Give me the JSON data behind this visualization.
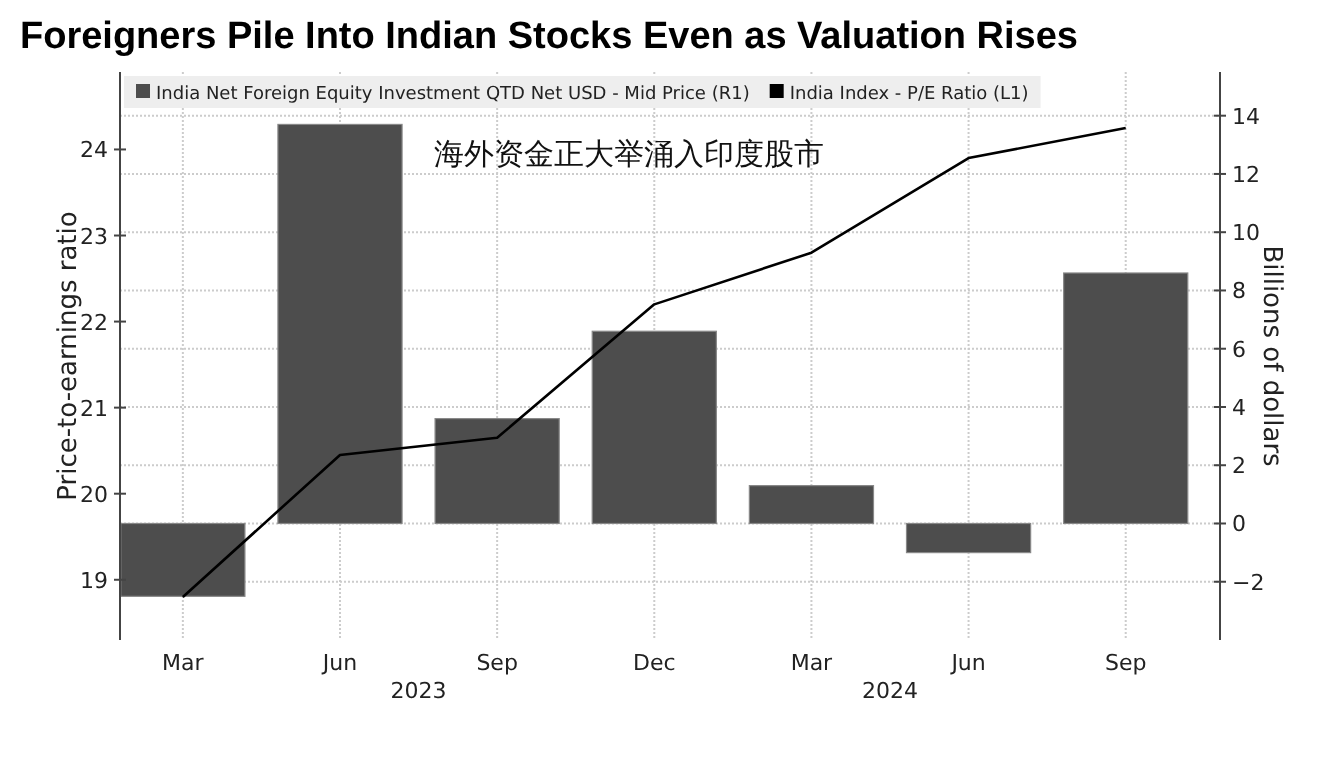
{
  "chart_data": {
    "type": "bar",
    "title": "Foreigners Pile Into Indian Stocks Even as Valuation Rises",
    "categories": [
      "Mar",
      "Jun",
      "Sep",
      "Dec",
      "Mar",
      "Jun",
      "Sep"
    ],
    "ylabel": "Price-to-earnings ratio",
    "y2label": "Billions of dollars",
    "ylim": [
      18.3,
      24.9
    ],
    "yticks": [
      19,
      20,
      21,
      22,
      23,
      24
    ],
    "y2lim": [
      -4,
      15.5
    ],
    "y2ticks": [
      -2,
      0,
      2,
      4,
      6,
      8,
      10,
      12,
      14
    ],
    "series": [
      {
        "name": "India Net Foreign Equity Investment QTD Net USD - Mid Price (R1)",
        "axis": "y2",
        "color": "#4d4d4d",
        "values": [
          -2.5,
          13.7,
          3.6,
          6.6,
          1.3,
          -1.0,
          8.6
        ]
      },
      {
        "name": "India Index - P/E Ratio (L1)",
        "type": "line",
        "axis": "y",
        "color": "#000000",
        "values": [
          18.8,
          20.45,
          20.65,
          22.2,
          22.8,
          23.9,
          24.25
        ]
      }
    ],
    "annotations": [
      "海外资金正大举涌入印度股市",
      "2023",
      "2024"
    ],
    "grid": true,
    "legend": "top left"
  }
}
